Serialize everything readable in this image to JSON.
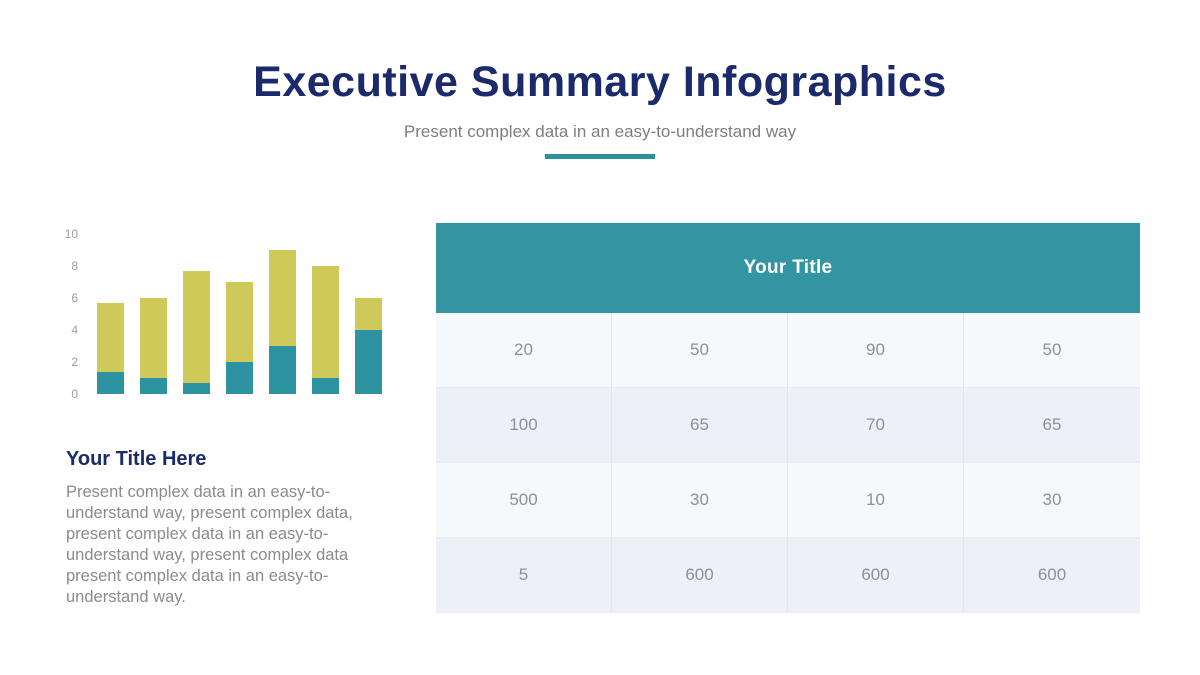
{
  "header": {
    "title": "Executive Summary Infographics",
    "subtitle": "Present complex data in an easy-to-understand way"
  },
  "left_section": {
    "title": "Your Title Here",
    "body": "Present complex data in an easy-to-understand way, present complex data, present complex data in an easy-to-understand way, present complex data present complex data in an easy-to-understand way."
  },
  "table": {
    "header": "Your Title",
    "rows": [
      [
        "20",
        "50",
        "90",
        "50"
      ],
      [
        "100",
        "65",
        "70",
        "65"
      ],
      [
        "500",
        "30",
        "10",
        "30"
      ],
      [
        "5",
        "600",
        "600",
        "600"
      ]
    ]
  },
  "chart_data": {
    "type": "bar",
    "stacked": true,
    "categories": [
      "",
      "",
      "",
      "",
      "",
      "",
      ""
    ],
    "series": [
      {
        "name": "bottom-segment",
        "color": "#2e93a1",
        "values": [
          1.4,
          1,
          0.7,
          2,
          3,
          1,
          4
        ]
      },
      {
        "name": "top-segment",
        "color": "#cfc95a",
        "values": [
          4.3,
          5,
          7,
          5,
          6,
          7,
          2
        ]
      }
    ],
    "yticks": [
      0,
      2,
      4,
      6,
      8,
      10
    ],
    "ylim": [
      0,
      10
    ],
    "grid": false,
    "legend": false,
    "x_axis_labels_visible": false
  },
  "colors": {
    "navy": "#1b2a6b",
    "teal_header": "#3495a2",
    "teal_bar": "#2e93a1",
    "yellow_bar": "#cfc95a",
    "divider": "#2e8f9d",
    "row_light": "#f6f9fb",
    "row_alt": "#edf1f7"
  }
}
